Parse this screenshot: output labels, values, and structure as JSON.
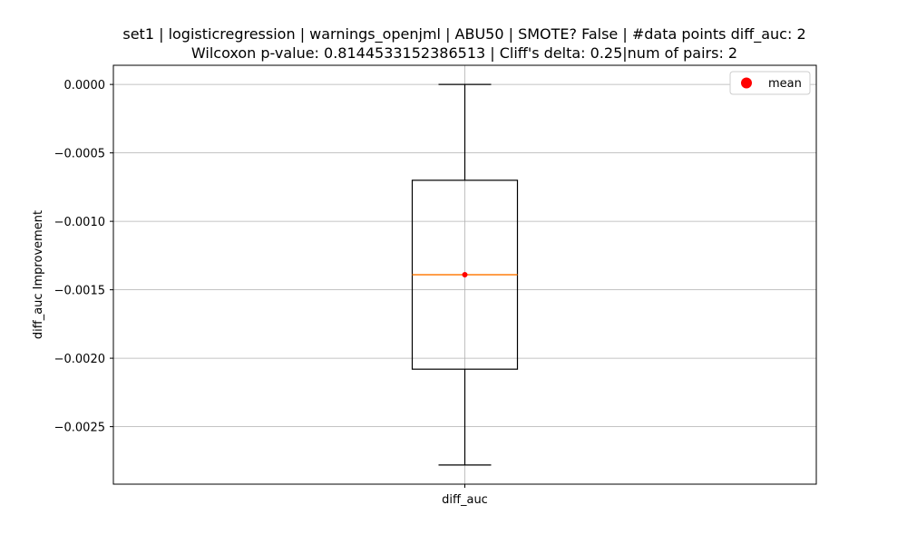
{
  "chart_data": {
    "type": "box",
    "title_line1": "set1 | logisticregression | warnings_openjml | ABU50 | SMOTE? False | #data points diff_auc: 2",
    "title_line2": "Wilcoxon p-value: 0.8144533152386513 | Cliff's delta: 0.25|num of pairs: 2",
    "ylabel": "diff_auc Improvement",
    "xlabel": "",
    "categories": [
      "diff_auc"
    ],
    "ylim": [
      -0.00292,
      0.00014
    ],
    "yticks": [
      0.0,
      -0.0005,
      -0.001,
      -0.0015,
      -0.002,
      -0.0025
    ],
    "ytick_labels": [
      "0.0000",
      "−0.0005",
      "−0.0010",
      "−0.0015",
      "−0.0020",
      "−0.0025"
    ],
    "box": {
      "whisker_max": 0.0,
      "q3": -0.0007,
      "median": -0.00139,
      "q1": -0.00208,
      "whisker_min": -0.00278,
      "mean": -0.00139
    },
    "legend": {
      "label": "mean",
      "placement": "upper right"
    },
    "grid": true,
    "colors": {
      "box": "#000000",
      "median": "#ff7f0e",
      "mean": "#ff0000",
      "grid": "#b0b0b0"
    }
  }
}
